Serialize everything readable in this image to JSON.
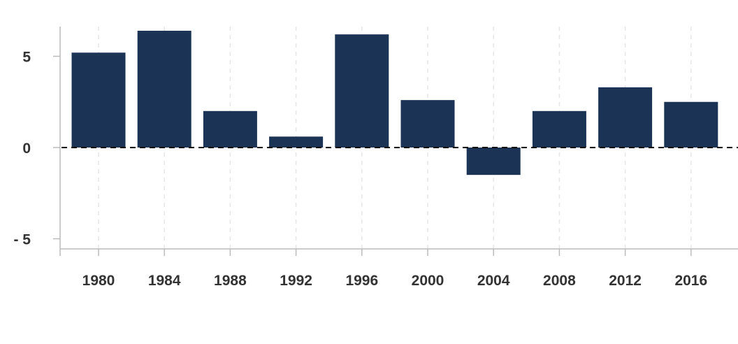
{
  "chart_data": {
    "type": "bar",
    "categories": [
      "1980",
      "1984",
      "1988",
      "1992",
      "1996",
      "2000",
      "2004",
      "2008",
      "2012",
      "2016"
    ],
    "values": [
      5.2,
      6.4,
      2.0,
      0.6,
      6.2,
      2.6,
      -1.5,
      2.0,
      3.3,
      2.5
    ],
    "yticks": [
      {
        "value": 5,
        "label": "5"
      },
      {
        "value": 0,
        "label": "0"
      },
      {
        "value": -5,
        "label": "- 5"
      }
    ],
    "ylim": [
      -5.5,
      6.7
    ],
    "xlabel": "",
    "ylabel": "",
    "title": "",
    "grid": "vertical dashed",
    "zero_line": "dashed",
    "colors": {
      "bar": "#1b3354",
      "grid": "#e6e6e6",
      "axis": "#bbbbbb",
      "zero_line": "#000000",
      "text": "#333333"
    }
  }
}
